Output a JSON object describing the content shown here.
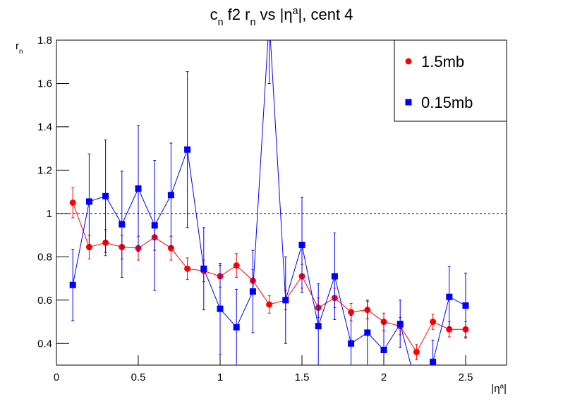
{
  "chart_data": {
    "type": "scatter",
    "title": [
      {
        "text": "c"
      },
      {
        "text": "n",
        "script": "sub"
      },
      {
        "text": " f2 r"
      },
      {
        "text": "n",
        "script": "sub"
      },
      {
        "text": " vs |η"
      },
      {
        "text": "a",
        "script": "super"
      },
      {
        "text": "|, cent 4"
      }
    ],
    "x_label": [
      {
        "text": "|η"
      },
      {
        "text": "a",
        "script": "super"
      },
      {
        "text": "|"
      }
    ],
    "y_label": [
      {
        "text": "r"
      },
      {
        "text": "n",
        "script": "sub"
      }
    ],
    "x": [
      0.1,
      0.2,
      0.3,
      0.4,
      0.5,
      0.6,
      0.7,
      0.8,
      0.9,
      1.0,
      1.1,
      1.2,
      1.3,
      1.4,
      1.5,
      1.6,
      1.7,
      1.8,
      1.9,
      2.0,
      2.1,
      2.2,
      2.3,
      2.4,
      2.5
    ],
    "series": [
      {
        "name": "1.5mb",
        "color": "#ff0000",
        "marker": "circle",
        "values": [
          1.05,
          0.845,
          0.865,
          0.845,
          0.84,
          0.89,
          0.84,
          0.745,
          0.735,
          0.71,
          0.76,
          0.69,
          0.58,
          0.6,
          0.71,
          0.565,
          0.61,
          0.545,
          0.555,
          0.5,
          0.48,
          0.36,
          0.5,
          0.465,
          0.465
        ],
        "errors": [
          0.07,
          0.055,
          0.06,
          0.055,
          0.055,
          0.06,
          0.055,
          0.05,
          0.05,
          0.05,
          0.055,
          0.05,
          0.04,
          0.045,
          0.055,
          0.045,
          0.045,
          0.04,
          0.04,
          0.04,
          0.04,
          0.035,
          0.035,
          0.035,
          0.035
        ]
      },
      {
        "name": "0.15mb",
        "color": "#0000ff",
        "marker": "square",
        "values": [
          0.67,
          1.055,
          1.08,
          0.95,
          1.115,
          0.945,
          1.085,
          1.295,
          0.745,
          0.56,
          0.475,
          0.64,
          1.9,
          0.6,
          0.855,
          0.48,
          0.71,
          0.4,
          0.45,
          0.37,
          0.49,
          0.2,
          0.315,
          0.615,
          0.575
        ],
        "errors": [
          0.165,
          0.22,
          0.26,
          0.245,
          0.29,
          0.3,
          0.24,
          0.36,
          0.19,
          0.21,
          0.175,
          0.19,
          0.3,
          0.2,
          0.22,
          0.195,
          0.2,
          0.13,
          0.15,
          0.13,
          0.11,
          0.1,
          0.1,
          0.14,
          0.15
        ]
      }
    ],
    "xlim": [
      0,
      2.75
    ],
    "xticks": [
      0,
      0.5,
      1,
      1.5,
      2,
      2.5
    ],
    "ylim": [
      0.3,
      1.8
    ],
    "yticks": [
      0.4,
      0.6,
      0.8,
      1,
      1.2,
      1.4,
      1.6,
      1.8
    ],
    "reference_line": 1,
    "legend": "top-right"
  }
}
